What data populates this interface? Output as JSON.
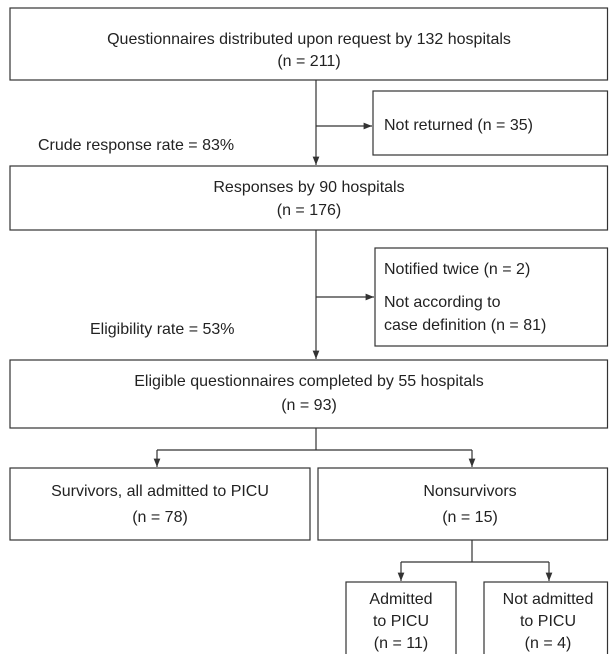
{
  "nodes": [
    {
      "lines": [
        "Questionnaires distributed upon request by 132 hospitals",
        "(n = 211)"
      ]
    },
    {
      "lines": [
        "Not returned (n = 35)"
      ]
    },
    {
      "lines": [
        "Responses by 90 hospitals",
        "(n = 176)"
      ]
    },
    {
      "lines": [
        "Notified twice (n = 2)",
        "Not according to",
        "case definition (n = 81)"
      ]
    },
    {
      "lines": [
        "Eligible questionnaires completed by 55 hospitals",
        "(n = 93)"
      ]
    },
    {
      "lines": [
        "Survivors, all admitted to PICU",
        "(n = 78)"
      ]
    },
    {
      "lines": [
        "Nonsurvivors",
        "(n = 15)"
      ]
    },
    {
      "lines": [
        "Admitted",
        "to PICU",
        "(n = 11)"
      ]
    },
    {
      "lines": [
        "Not admitted",
        "to PICU",
        "(n = 4)"
      ]
    }
  ],
  "edge_labels": [
    "Crude response rate = 83%",
    "Eligibility rate = 53%"
  ]
}
